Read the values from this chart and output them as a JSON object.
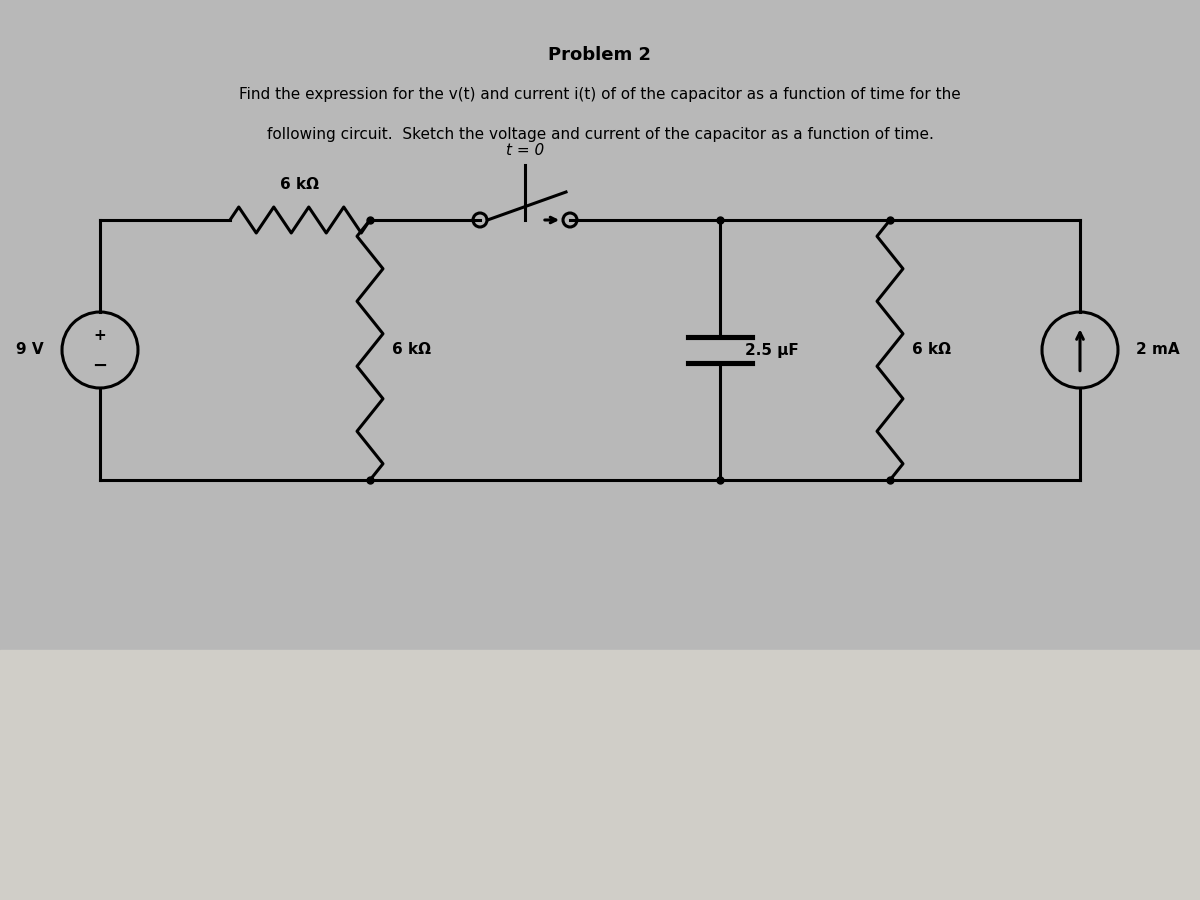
{
  "title": "Problem 2",
  "subtitle_line1": "Find the expression for the v(t) and current i(t) of of the capacitor as a function of time for the",
  "subtitle_line2": "following circuit.  Sketch the voltage and current of the capacitor as a function of time.",
  "bg_color_top": "#b8b8b8",
  "bg_color_bottom": "#d0cec8",
  "circuit_color": "#000000",
  "components": {
    "R1_label": "6 kΩ",
    "R2_label": "6 kΩ",
    "R3_label": "6 kΩ",
    "C_label": "2.5 μF",
    "V_label": "9 V",
    "I_label": "2 mA",
    "switch_label": "t = 0"
  }
}
